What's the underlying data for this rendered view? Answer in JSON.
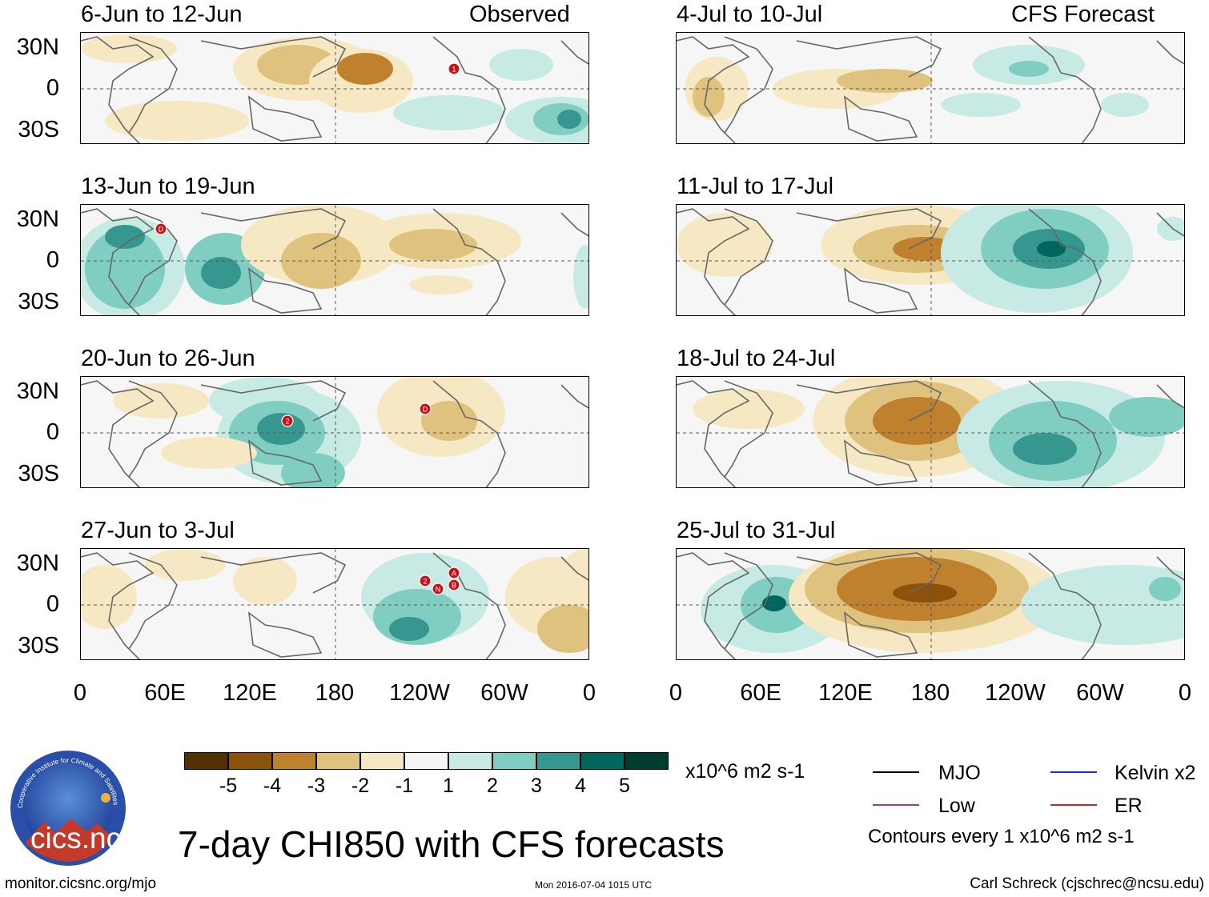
{
  "title": "7-day CHI850 with CFS forecasts",
  "headers": {
    "left": "Observed",
    "right": "CFS Forecast"
  },
  "units": "x10^6 m2 s-1",
  "contour_note": "Contours every 1 x10^6 m2 s-1",
  "url": "monitor.cicsnc.org/mjo",
  "timestamp": "Mon 2016-07-04 1015 UTC",
  "credit": "Carl Schreck (cjschrec@ncsu.edu)",
  "logo_text": "cics.nc",
  "logo_ring_text": "Cooperative Institute for Climate and Satellites",
  "y_ticks": [
    "30N",
    "0",
    "30S"
  ],
  "x_ticks": [
    "0",
    "60E",
    "120E",
    "180",
    "120W",
    "60W",
    "0"
  ],
  "colorbar": {
    "labels": [
      "-5",
      "-4",
      "-3",
      "-2",
      "-1",
      "1",
      "2",
      "3",
      "4",
      "5"
    ],
    "colors": [
      "#543005",
      "#8c510a",
      "#bf812d",
      "#dfc27d",
      "#f6e8c3",
      "#f5f5f5",
      "#c7eae5",
      "#80cdc1",
      "#35978f",
      "#01665e",
      "#003c30"
    ]
  },
  "legend": [
    {
      "label": "MJO",
      "color": "#000000"
    },
    {
      "label": "Kelvin x2",
      "color": "#1f2bd6"
    },
    {
      "label": "Low",
      "color": "#9b30e0"
    },
    {
      "label": "ER",
      "color": "#e0201c"
    }
  ],
  "panels": [
    {
      "id": "obs1",
      "label": "6-Jun to 12-Jun",
      "column": "observed",
      "storms": [
        "1"
      ]
    },
    {
      "id": "obs2",
      "label": "13-Jun to 19-Jun",
      "column": "observed",
      "storms": [
        "D"
      ]
    },
    {
      "id": "obs3",
      "label": "20-Jun to 26-Jun",
      "column": "observed",
      "storms": [
        "2",
        "D"
      ]
    },
    {
      "id": "obs4",
      "label": "27-Jun to 3-Jul",
      "column": "observed",
      "storms": [
        "2",
        "N",
        "A",
        "B"
      ]
    },
    {
      "id": "fc1",
      "label": "4-Jul to 10-Jul",
      "column": "forecast",
      "storms": []
    },
    {
      "id": "fc2",
      "label": "11-Jul to 17-Jul",
      "column": "forecast",
      "storms": []
    },
    {
      "id": "fc3",
      "label": "18-Jul to 24-Jul",
      "column": "forecast",
      "storms": []
    },
    {
      "id": "fc4",
      "label": "25-Jul to 31-Jul",
      "column": "forecast",
      "storms": []
    }
  ]
}
